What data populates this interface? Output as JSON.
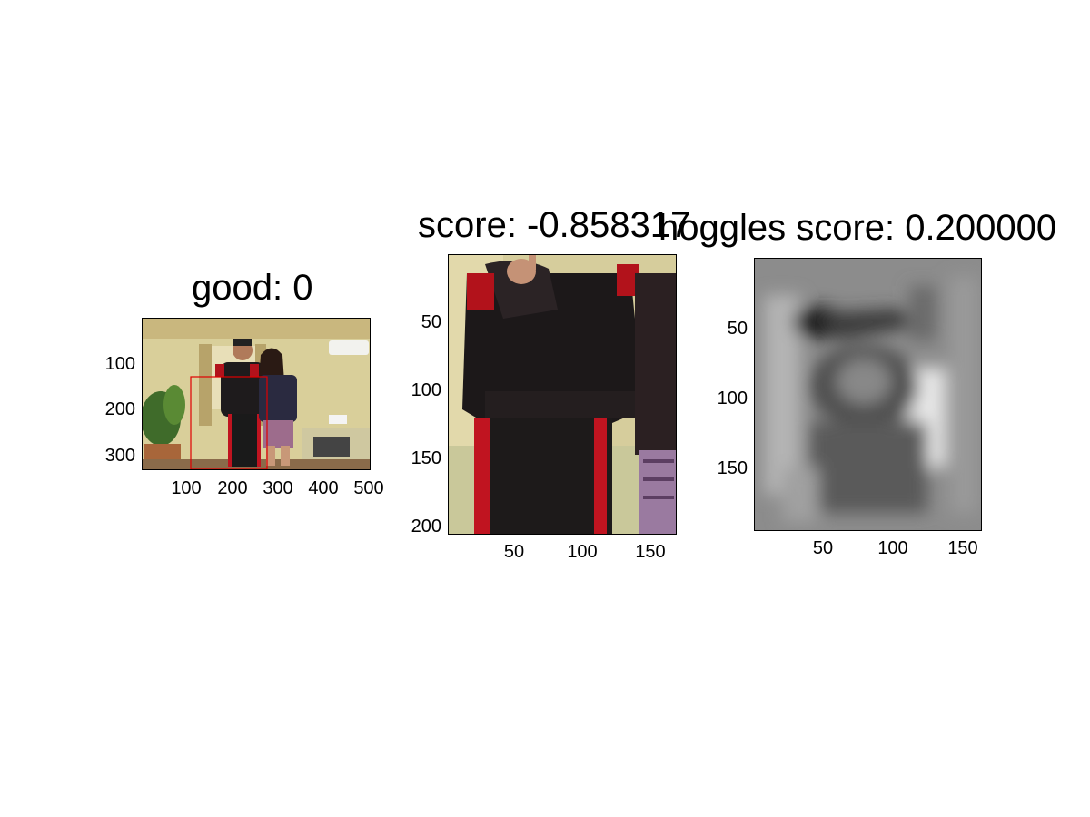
{
  "panels": [
    {
      "id": "original",
      "title": "good: 0",
      "y_ticks": [
        "100",
        "200",
        "300"
      ],
      "x_ticks": [
        "100",
        "200",
        "300",
        "400",
        "500"
      ],
      "box_color": "#e00000"
    },
    {
      "id": "crop",
      "title": "score: -0.858317",
      "y_ticks": [
        "50",
        "100",
        "150",
        "200"
      ],
      "x_ticks": [
        "50",
        "100",
        "150"
      ]
    },
    {
      "id": "hoggles",
      "title": "hoggles score: 0.200000",
      "y_ticks": [
        "50",
        "100",
        "150"
      ],
      "x_ticks": [
        "50",
        "100",
        "150"
      ]
    }
  ]
}
